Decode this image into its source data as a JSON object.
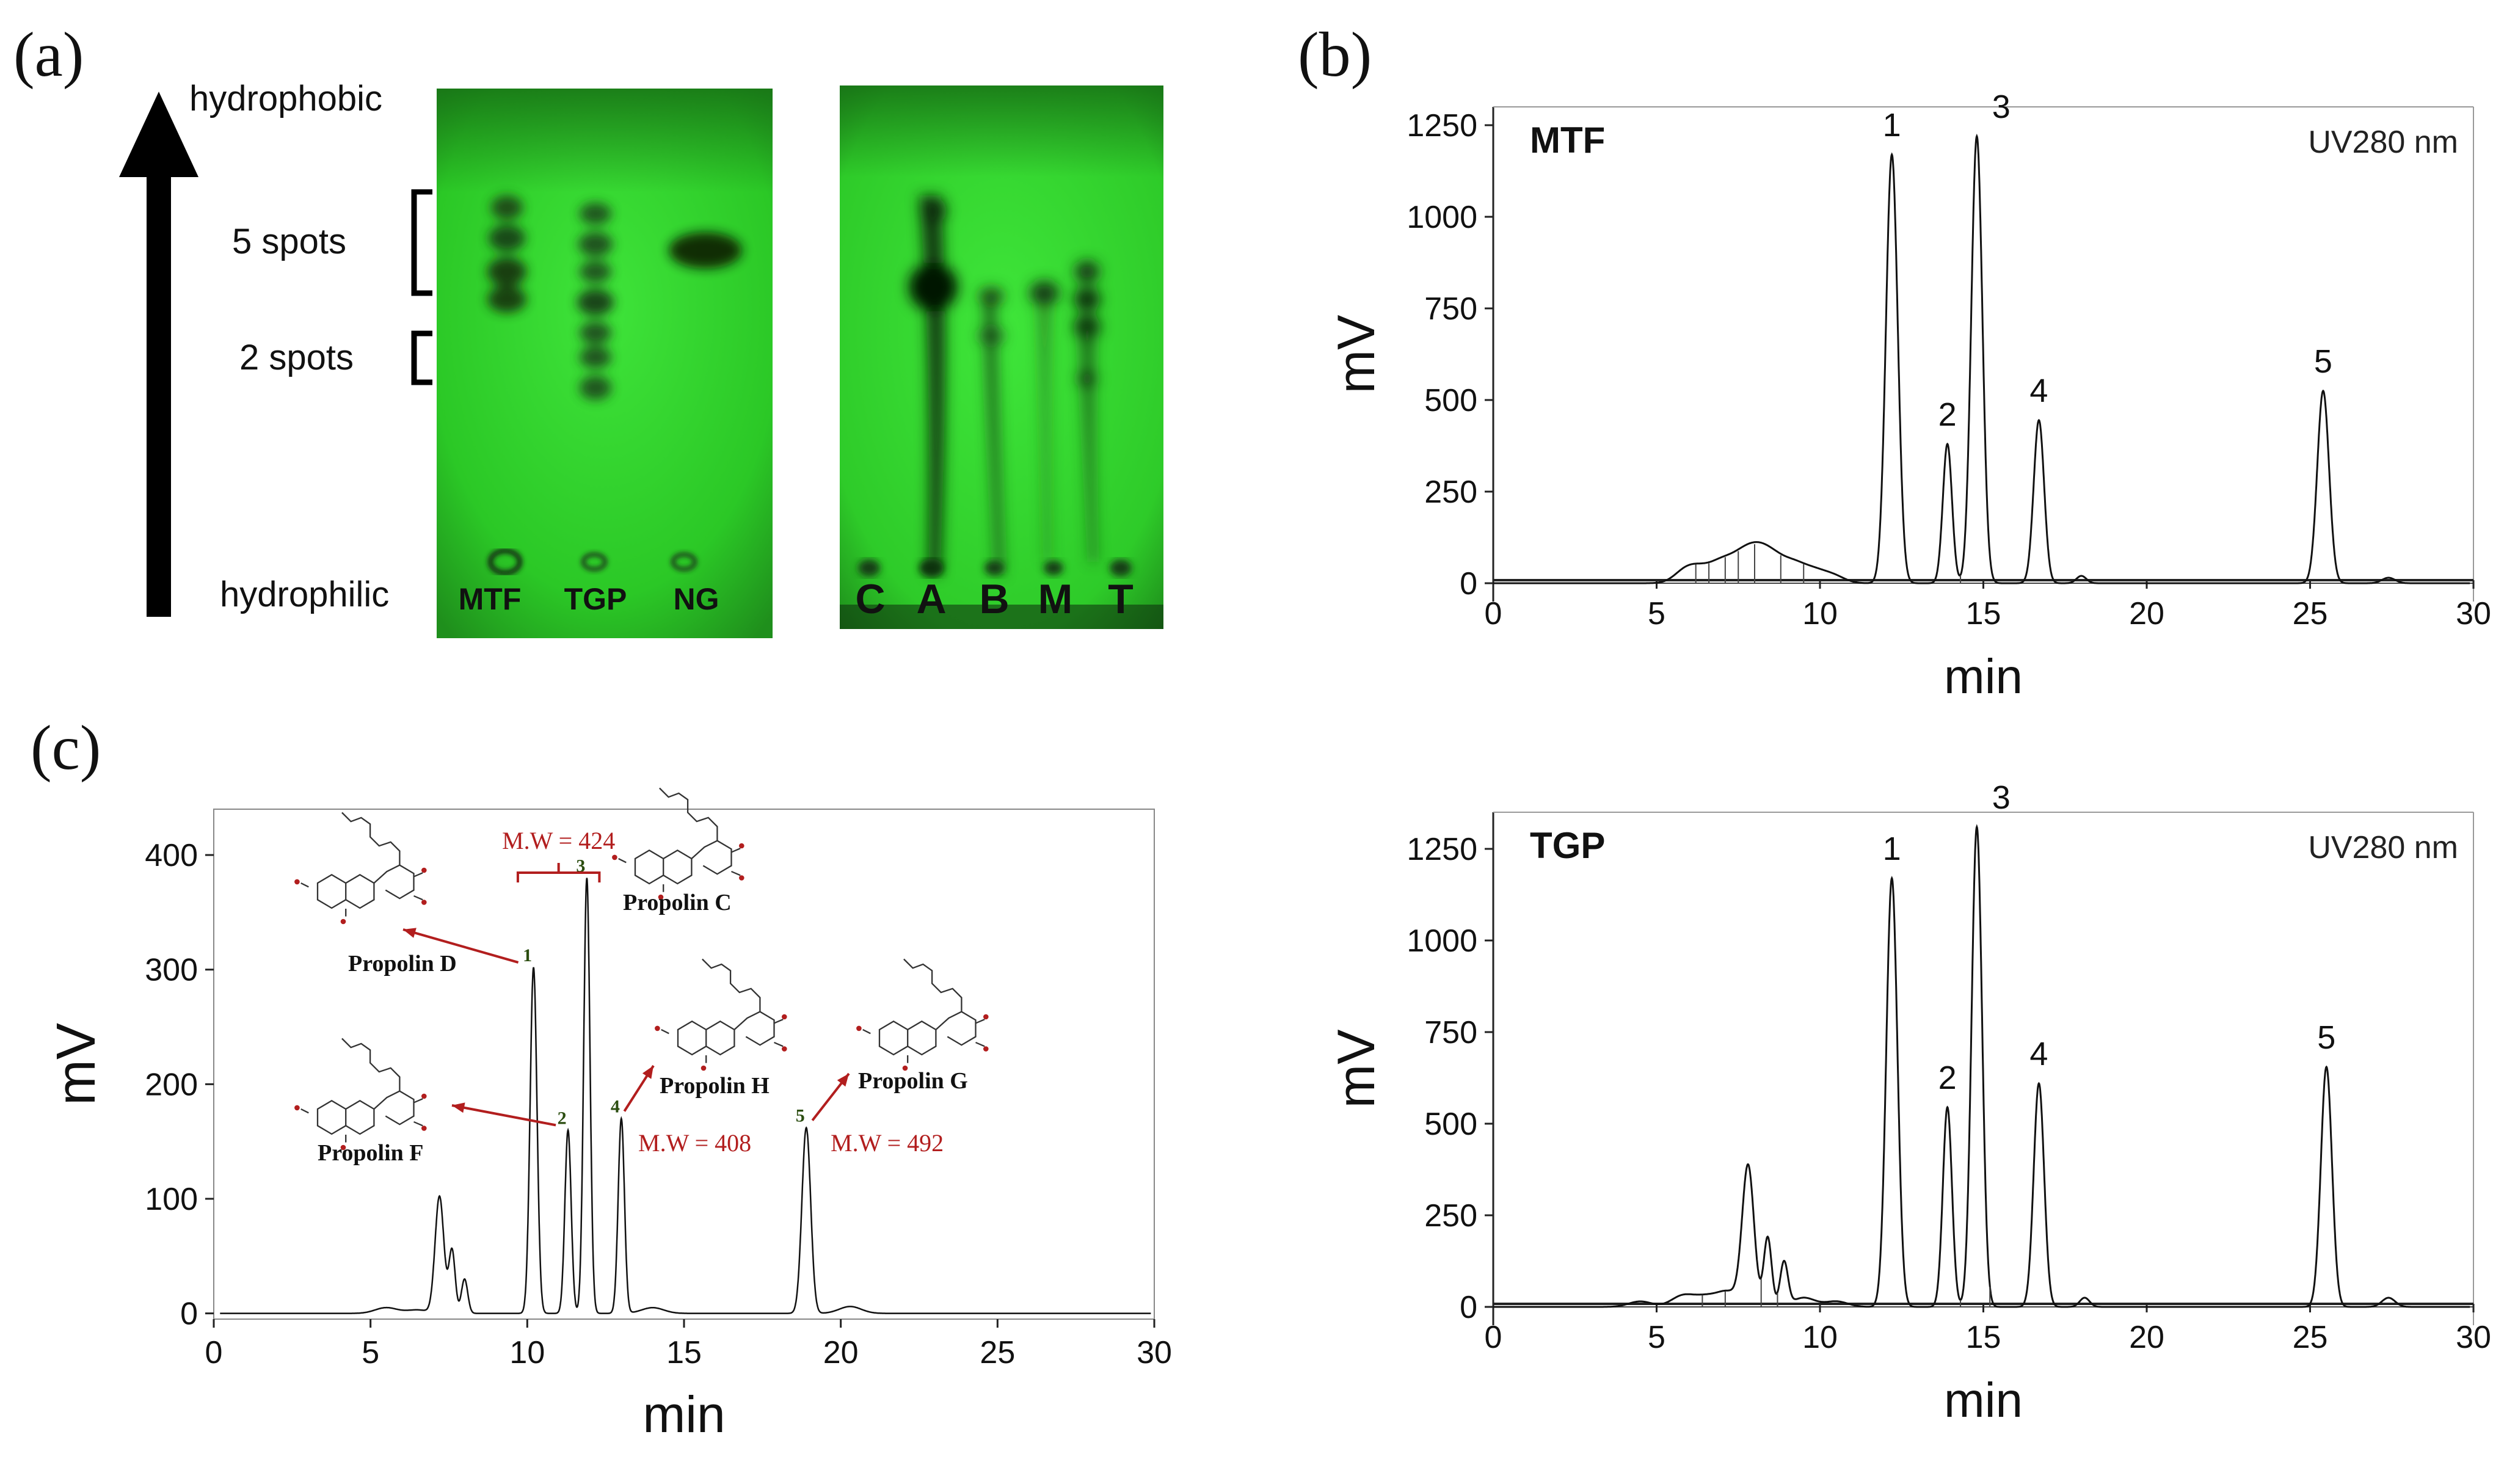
{
  "panels": {
    "a": {
      "label": "(a)",
      "arrow_top": "hydrophobic",
      "arrow_bottom": "hydrophilic",
      "spot_groups": [
        "5 spots",
        "2 spots"
      ],
      "plate1_lanes": [
        "MTF",
        "TGP",
        "NG"
      ],
      "plate2_lanes": [
        "C",
        "A",
        "B",
        "M",
        "T"
      ],
      "plate_color": "#2fd12a"
    },
    "b": {
      "label": "(b)"
    },
    "c": {
      "label": "(c)"
    }
  },
  "chart_data": [
    {
      "id": "b-top",
      "type": "line",
      "title": "MTF",
      "annotation": "UV280 nm",
      "xlabel": "min",
      "ylabel": "mV",
      "xlim": [
        0,
        30
      ],
      "ylim": [
        -50,
        1300
      ],
      "xticks": [
        0,
        5,
        10,
        15,
        20,
        25,
        30
      ],
      "yticks": [
        0,
        250,
        500,
        750,
        1000,
        1250
      ],
      "baseline": 0,
      "noise": [
        [
          5.9,
          35
        ],
        [
          6.4,
          30
        ],
        [
          7.0,
          50
        ],
        [
          7.6,
          60
        ],
        [
          8.1,
          70
        ],
        [
          8.6,
          55
        ],
        [
          9.2,
          45
        ],
        [
          9.8,
          30
        ],
        [
          10.4,
          20
        ]
      ],
      "peaks": [
        {
          "label": "1",
          "x": 12.2,
          "y": 1170,
          "w": 0.18
        },
        {
          "label": "2",
          "x": 13.9,
          "y": 380,
          "w": 0.14
        },
        {
          "label": "3",
          "x": 14.8,
          "y": 1220,
          "w": 0.17
        },
        {
          "label": "4",
          "x": 16.7,
          "y": 445,
          "w": 0.16
        },
        {
          "label": "",
          "x": 18.0,
          "y": 20,
          "w": 0.15
        },
        {
          "label": "5",
          "x": 25.4,
          "y": 525,
          "w": 0.18
        },
        {
          "label": "",
          "x": 27.4,
          "y": 15,
          "w": 0.2
        }
      ]
    },
    {
      "id": "b-bottom",
      "type": "line",
      "title": "TGP",
      "annotation": "UV280 nm",
      "xlabel": "min",
      "ylabel": "mV",
      "xlim": [
        0,
        30
      ],
      "ylim": [
        -50,
        1350
      ],
      "xticks": [
        0,
        5,
        10,
        15,
        20,
        25,
        30
      ],
      "yticks": [
        0,
        250,
        500,
        750,
        1000,
        1250
      ],
      "baseline": 0,
      "noise": [
        [
          4.5,
          15
        ],
        [
          5.8,
          30
        ],
        [
          6.5,
          25
        ],
        [
          7.2,
          40
        ],
        [
          9.5,
          25
        ],
        [
          10.5,
          15
        ]
      ],
      "peaks": [
        {
          "label": "",
          "x": 7.8,
          "y": 380,
          "w": 0.18
        },
        {
          "label": "",
          "x": 8.4,
          "y": 190,
          "w": 0.12
        },
        {
          "label": "",
          "x": 8.9,
          "y": 120,
          "w": 0.12
        },
        {
          "label": "1",
          "x": 12.2,
          "y": 1170,
          "w": 0.17
        },
        {
          "label": "2",
          "x": 13.9,
          "y": 545,
          "w": 0.14
        },
        {
          "label": "3",
          "x": 14.8,
          "y": 1310,
          "w": 0.16
        },
        {
          "label": "4",
          "x": 16.7,
          "y": 610,
          "w": 0.16
        },
        {
          "label": "",
          "x": 18.1,
          "y": 25,
          "w": 0.15
        },
        {
          "label": "5",
          "x": 25.5,
          "y": 655,
          "w": 0.17
        },
        {
          "label": "",
          "x": 27.4,
          "y": 25,
          "w": 0.2
        }
      ]
    },
    {
      "id": "c",
      "type": "line",
      "xlabel": "min",
      "ylabel": "mV",
      "xlim": [
        0,
        30
      ],
      "ylim": [
        -5,
        440
      ],
      "xticks": [
        0,
        5,
        10,
        15,
        20,
        25,
        30
      ],
      "yticks": [
        0,
        100,
        200,
        300,
        400
      ],
      "baseline": 0,
      "noise": [
        [
          5.5,
          5
        ],
        [
          6.5,
          3
        ],
        [
          14.0,
          5
        ],
        [
          20.3,
          6
        ]
      ],
      "peaks": [
        {
          "label": "",
          "x": 7.2,
          "y": 102,
          "w": 0.14
        },
        {
          "label": "",
          "x": 7.6,
          "y": 55,
          "w": 0.1
        },
        {
          "label": "",
          "x": 8.0,
          "y": 30,
          "w": 0.1
        },
        {
          "label": "1",
          "x": 10.2,
          "y": 302,
          "w": 0.11
        },
        {
          "label": "2",
          "x": 11.3,
          "y": 160,
          "w": 0.1
        },
        {
          "label": "3",
          "x": 11.9,
          "y": 380,
          "w": 0.1
        },
        {
          "label": "4",
          "x": 13.0,
          "y": 170,
          "w": 0.1
        },
        {
          "label": "5",
          "x": 18.9,
          "y": 162,
          "w": 0.14
        }
      ],
      "compounds": [
        {
          "peak": "1",
          "name": "Propolin D"
        },
        {
          "peak": "2",
          "name": "Propolin F"
        },
        {
          "peak": "3",
          "name": "Propolin C"
        },
        {
          "peak": "4",
          "name": "Propolin H"
        },
        {
          "peak": "5",
          "name": "Propolin G"
        }
      ],
      "mw_labels": [
        "M.W = 424",
        "M.W = 408",
        "M.W = 492"
      ]
    }
  ]
}
